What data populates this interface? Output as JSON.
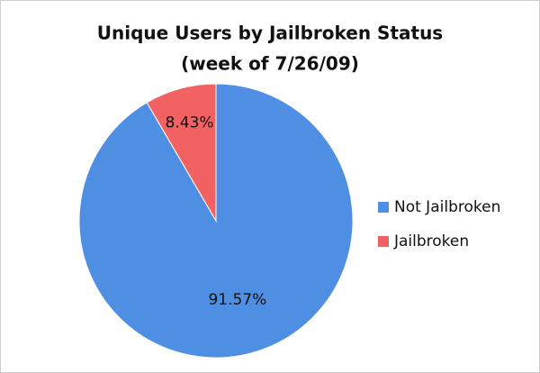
{
  "chart_data": {
    "type": "pie",
    "title": "Unique Users by Jailbroken Status",
    "subtitle": "(week of 7/26/09)",
    "categories": [
      "Not Jailbroken",
      "Jailbroken"
    ],
    "values": [
      91.57,
      8.43
    ],
    "value_labels": [
      "91.57%",
      "8.43%"
    ],
    "colors": [
      "#4f8fe3",
      "#f26262"
    ],
    "legend": "right"
  }
}
